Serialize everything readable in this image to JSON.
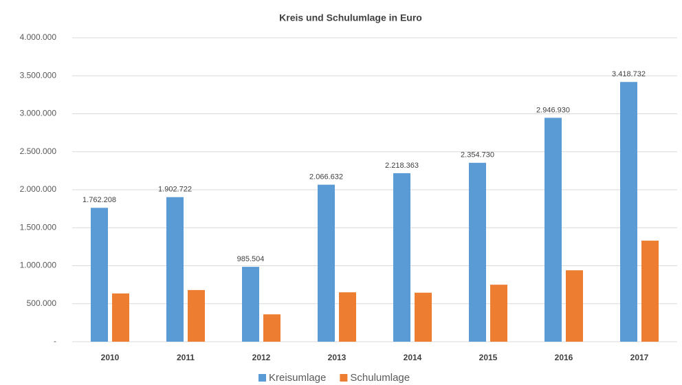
{
  "chart_data": {
    "type": "bar",
    "title": "Kreis  und Schulumlage in Euro",
    "categories": [
      "2010",
      "2011",
      "2012",
      "2013",
      "2014",
      "2015",
      "2016",
      "2017"
    ],
    "series": [
      {
        "name": "Kreisumlage",
        "color": "#5b9bd5",
        "values": [
          1762208,
          1902722,
          985504,
          2066632,
          2218363,
          2354730,
          2946930,
          3418732
        ],
        "value_labels": [
          "1.762.208",
          "1.902.722",
          "985.504",
          "2.066.632",
          "2.218.363",
          "2.354.730",
          "2.946.930",
          "3.418.732"
        ]
      },
      {
        "name": "Schulumlage",
        "color": "#ed7d31",
        "values": [
          635000,
          680000,
          360000,
          650000,
          645000,
          750000,
          940000,
          1330000
        ]
      }
    ],
    "ylim": [
      0,
      4000000
    ],
    "yticks": [
      {
        "value": 0,
        "label": "-"
      },
      {
        "value": 500000,
        "label": "500.000"
      },
      {
        "value": 1000000,
        "label": "1.000.000"
      },
      {
        "value": 1500000,
        "label": "1.500.000"
      },
      {
        "value": 2000000,
        "label": "2.000.000"
      },
      {
        "value": 2500000,
        "label": "2.500.000"
      },
      {
        "value": 3000000,
        "label": "3.000.000"
      },
      {
        "value": 3500000,
        "label": "3.500.000"
      },
      {
        "value": 4000000,
        "label": "4.000.000"
      }
    ],
    "grid": true,
    "legend": "bottom"
  }
}
